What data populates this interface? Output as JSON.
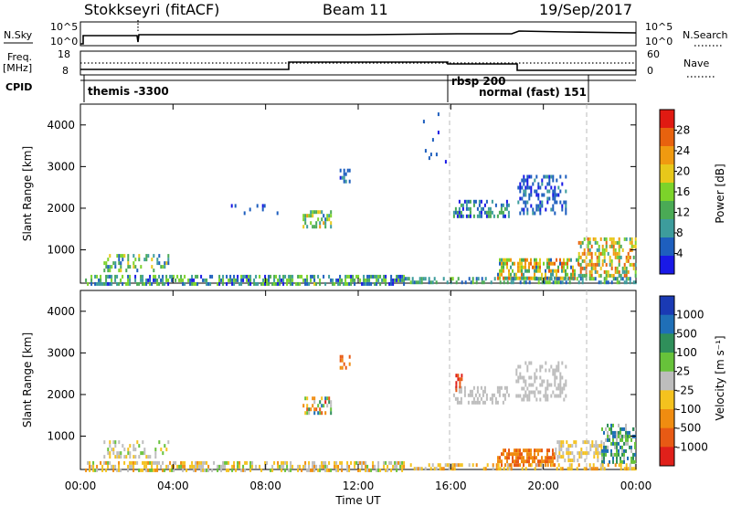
{
  "header": {
    "radar": "Stokkseyri (fitACF)",
    "beam": "Beam 11",
    "date": "19/Sep/2017"
  },
  "meta_axes": {
    "nsky_label": "N.Sky",
    "nsky_ticks": [
      "10^5",
      "10^0"
    ],
    "nsearch_label": "N.Search",
    "nsearch_ticks": [
      "10^5",
      "10^0"
    ],
    "freq_label": "Freq.",
    "freq_unit": "[MHz]",
    "freq_ticks": [
      "18",
      "8"
    ],
    "nave_label": "Nave",
    "nave_ticks": [
      "60",
      "0"
    ],
    "cpid_label": "CPID"
  },
  "cpid_segments": [
    {
      "label": "themis -3300",
      "start_hour": 0.0
    },
    {
      "label": "rbsp 200",
      "start_hour": 16.0
    },
    {
      "label": "normal (fast) 151",
      "start_hour": 16.0
    }
  ],
  "colors": {
    "power_scale": [
      "#1919e6",
      "#1e5fbe",
      "#3d9c9c",
      "#4aaa55",
      "#7cd32a",
      "#e8c81a",
      "#f09a10",
      "#e8620e",
      "#e01a12"
    ],
    "velocity_scale": [
      "#1a3ab4",
      "#1f6fb7",
      "#2f8f5a",
      "#67c23a",
      "#bdbdbd",
      "#f4c21e",
      "#f08c10",
      "#e85a14",
      "#e0201a"
    ]
  },
  "chart_data": [
    {
      "type": "heatmap",
      "name": "power-panel",
      "xlabel": "",
      "ylabel": "Slant Range [km]",
      "ylim": [
        200,
        4500
      ],
      "xlim": [
        0,
        24
      ],
      "y_ticks": [
        "1000",
        "2000",
        "3000",
        "4000"
      ],
      "y_tick_values": [
        1000,
        2000,
        3000,
        4000
      ],
      "colorbar_label": "Power [dB]",
      "colorbar_ticks": [
        "4",
        "8",
        "12",
        "16",
        "20",
        "24",
        "28"
      ],
      "colorbar_tick_values": [
        4,
        8,
        12,
        16,
        20,
        24,
        28
      ],
      "colorbar_range": [
        0,
        32
      ],
      "blobs": [
        {
          "x": [
            0.2,
            14.0
          ],
          "y": [
            200,
            400
          ],
          "v": [
            2,
            18
          ],
          "density": 0.55
        },
        {
          "x": [
            1.0,
            3.8
          ],
          "y": [
            500,
            900
          ],
          "v": [
            4,
            20
          ],
          "density": 0.35
        },
        {
          "x": [
            9.6,
            10.8
          ],
          "y": [
            1550,
            1950
          ],
          "v": [
            6,
            22
          ],
          "density": 0.5
        },
        {
          "x": [
            11.2,
            11.6
          ],
          "y": [
            2600,
            2950
          ],
          "v": [
            2,
            8
          ],
          "density": 0.5
        },
        {
          "x": [
            16.1,
            18.5
          ],
          "y": [
            1800,
            2200
          ],
          "v": [
            2,
            14
          ],
          "density": 0.45
        },
        {
          "x": [
            18.8,
            21.0
          ],
          "y": [
            1900,
            2800
          ],
          "v": [
            2,
            8
          ],
          "density": 0.35
        },
        {
          "x": [
            18.0,
            21.5
          ],
          "y": [
            300,
            800
          ],
          "v": [
            6,
            28
          ],
          "density": 0.6
        },
        {
          "x": [
            21.5,
            24.0
          ],
          "y": [
            400,
            1300
          ],
          "v": [
            8,
            28
          ],
          "density": 0.55
        },
        {
          "x": [
            14.0,
            24.0
          ],
          "y": [
            200,
            350
          ],
          "v": [
            4,
            16
          ],
          "density": 0.4
        },
        {
          "x": [
            14.8,
            15.8
          ],
          "y": [
            2800,
            4300
          ],
          "v": [
            2,
            6
          ],
          "density": 0.05
        },
        {
          "x": [
            6.5,
            8.5
          ],
          "y": [
            1900,
            2100
          ],
          "v": [
            2,
            6
          ],
          "density": 0.12
        }
      ]
    },
    {
      "type": "heatmap",
      "name": "velocity-panel",
      "xlabel": "Time UT",
      "ylabel": "Slant Range [km]",
      "ylim": [
        200,
        4500
      ],
      "xlim": [
        0,
        24
      ],
      "x_ticks": [
        "00:00",
        "04:00",
        "08:00",
        "12:00",
        "16:00",
        "20:00",
        "00:00"
      ],
      "x_tick_values": [
        0,
        4,
        8,
        12,
        16,
        20,
        24
      ],
      "y_ticks": [
        "1000",
        "2000",
        "3000",
        "4000"
      ],
      "y_tick_values": [
        1000,
        2000,
        3000,
        4000
      ],
      "colorbar_label": "Velocity [m s⁻¹]",
      "colorbar_ticks": [
        "1000",
        "500",
        "100",
        "25",
        "-25",
        "-100",
        "-500",
        "-1000"
      ],
      "colorbar_tick_values": [
        1000,
        500,
        100,
        25,
        -25,
        -100,
        -500,
        -1000
      ],
      "blobs": [
        {
          "x": [
            0.2,
            14.0
          ],
          "y": [
            200,
            400
          ],
          "cat": [
            3,
            6
          ],
          "density": 0.5
        },
        {
          "x": [
            1.0,
            3.8
          ],
          "y": [
            500,
            900
          ],
          "cat": [
            3,
            5
          ],
          "density": 0.3
        },
        {
          "x": [
            9.6,
            10.8
          ],
          "y": [
            1550,
            1950
          ],
          "cat": [
            1,
            8
          ],
          "density": 0.5
        },
        {
          "x": [
            11.2,
            11.6
          ],
          "y": [
            2600,
            2950
          ],
          "cat": [
            6,
            7
          ],
          "density": 0.5
        },
        {
          "x": [
            16.1,
            18.5
          ],
          "y": [
            1800,
            2200
          ],
          "cat": [
            4,
            4
          ],
          "density": 0.45
        },
        {
          "x": [
            16.2,
            16.5
          ],
          "y": [
            2100,
            2500
          ],
          "cat": [
            7,
            8
          ],
          "density": 0.5
        },
        {
          "x": [
            18.8,
            21.0
          ],
          "y": [
            1900,
            2800
          ],
          "cat": [
            4,
            4
          ],
          "density": 0.35
        },
        {
          "x": [
            18.0,
            20.5
          ],
          "y": [
            300,
            700
          ],
          "cat": [
            6,
            7
          ],
          "density": 0.6
        },
        {
          "x": [
            20.5,
            22.5
          ],
          "y": [
            400,
            900
          ],
          "cat": [
            4,
            5
          ],
          "density": 0.5
        },
        {
          "x": [
            22.5,
            24.0
          ],
          "y": [
            400,
            1300
          ],
          "cat": [
            1,
            4
          ],
          "density": 0.55
        },
        {
          "x": [
            14.0,
            24.0
          ],
          "y": [
            200,
            350
          ],
          "cat": [
            4,
            6
          ],
          "density": 0.35
        }
      ]
    }
  ]
}
